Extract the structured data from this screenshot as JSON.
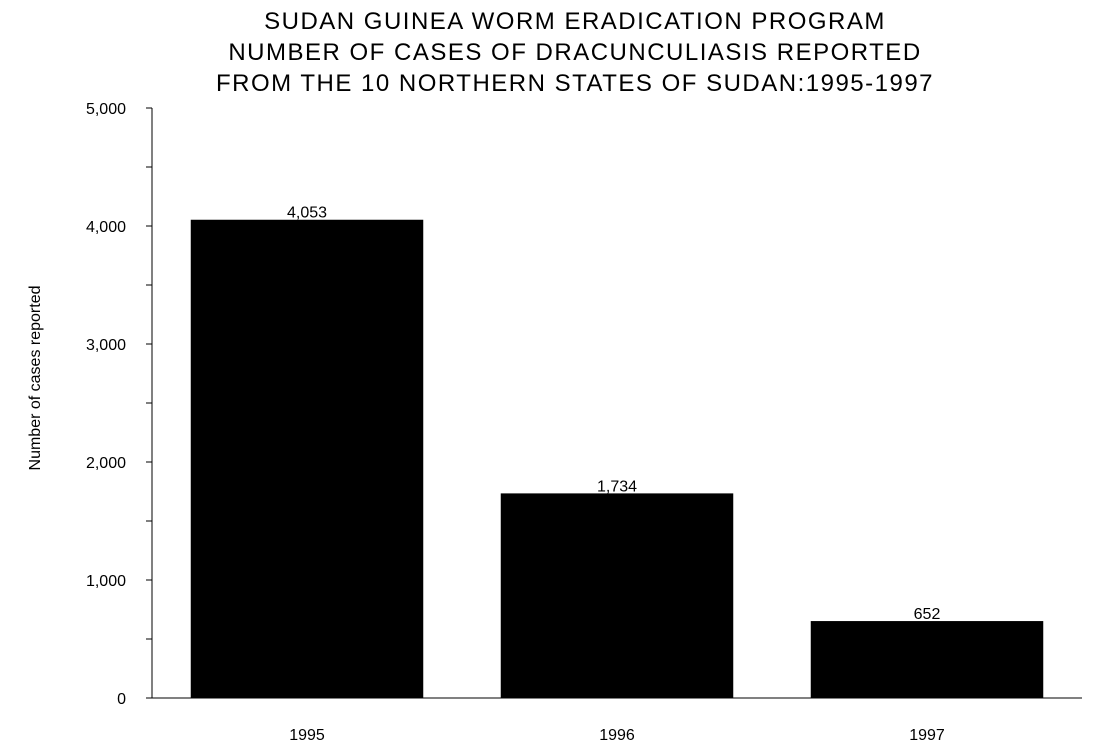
{
  "chart_data": {
    "type": "bar",
    "title": [
      "SUDAN GUINEA WORM ERADICATION PROGRAM",
      "NUMBER OF CASES OF DRACUNCULIASIS REPORTED",
      "FROM THE 10 NORTHERN STATES OF SUDAN:1995-1997"
    ],
    "xlabel": "",
    "ylabel": "Number of cases reported",
    "categories": [
      "1995",
      "1996",
      "1997"
    ],
    "values": [
      4053,
      1734,
      652
    ],
    "value_labels": [
      "4,053",
      "1,734",
      "652"
    ],
    "ylim": [
      0,
      5000
    ],
    "y_ticks": [
      0,
      1000,
      2000,
      3000,
      4000,
      5000
    ],
    "y_tick_labels": [
      "0",
      "1,000",
      "2,000",
      "3,000",
      "4,000",
      "5,000"
    ],
    "bar_color": "#000000",
    "grid": false,
    "legend": "none"
  }
}
